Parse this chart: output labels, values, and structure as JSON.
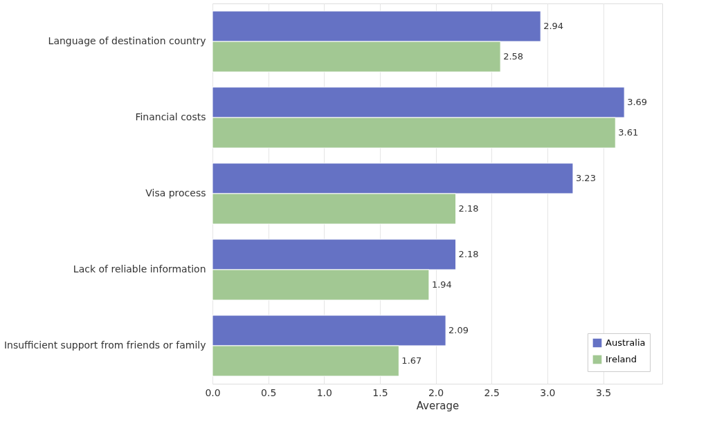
{
  "chart_data": {
    "type": "bar",
    "orientation": "horizontal",
    "xlabel": "Average",
    "categories": [
      "Language of destination country",
      "Financial costs",
      "Visa process",
      "Lack of reliable information",
      "Insufficient support from friends or family"
    ],
    "series": [
      {
        "name": "Australia",
        "color": "#6572c4",
        "values": [
          2.94,
          3.69,
          3.23,
          2.18,
          2.09
        ]
      },
      {
        "name": "Ireland",
        "color": "#a2c893",
        "values": [
          2.58,
          3.61,
          2.18,
          1.94,
          1.67
        ]
      }
    ],
    "xlim": [
      0,
      4.03
    ],
    "xticks": [
      {
        "value": 0,
        "label": "0.0"
      },
      {
        "value": 0.5,
        "label": "0.5"
      },
      {
        "value": 1,
        "label": "1.0"
      },
      {
        "value": 1.5,
        "label": "1.5"
      },
      {
        "value": 2,
        "label": "2.0"
      },
      {
        "value": 2.5,
        "label": "2.5"
      },
      {
        "value": 3,
        "label": "3.0"
      },
      {
        "value": 3.5,
        "label": "3.5"
      }
    ],
    "grid": "x",
    "legend": "bottom right",
    "data_labels": true
  }
}
